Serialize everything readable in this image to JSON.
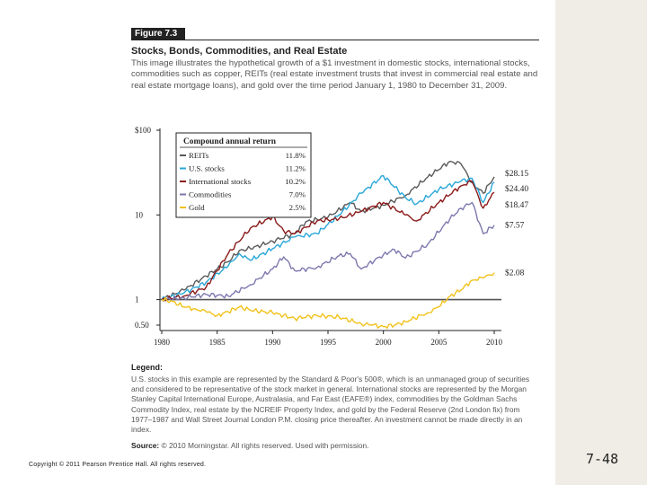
{
  "slide": {
    "figure_label": "Figure 7.3",
    "title": "Stocks, Bonds, Commodities, and Real Estate",
    "description": "This image illustrates the hypothetical growth of a $1 investment in domestic stocks, international stocks, commodities such as copper, REITs (real estate investment trusts that invest in commercial real estate and real estate mortgage loans), and gold over the time period January 1, 1980 to December 31, 2009.",
    "legend_heading": "Legend:",
    "legend_text": "U.S. stocks in this example are represented by the Standard & Poor's 500®, which is an unmanaged group of securities and considered to be representative of the stock market in general. International stocks are represented by the Morgan Stanley Capital International Europe, Australasia, and Far East (EAFE®) index, commodities by the Goldman Sachs Commodity Index, real estate by the NCREIF Property Index, and gold by the Federal Reserve (2nd London fix) from 1977–1987 and Wall Street Journal London P.M. closing price thereafter. An investment cannot be made directly in an index.",
    "source_label": "Source:",
    "source_text": "© 2010 Morningstar. All rights reserved. Used with permission.",
    "copyright": "Copyright © 2011 Pearson Prentice Hall. All rights reserved.",
    "slide_number": "7-48"
  },
  "chart_data": {
    "type": "line",
    "title": "",
    "xlabel": "",
    "ylabel": "",
    "y_scale": "log",
    "xlim": [
      1980,
      2010
    ],
    "ylim": [
      0.5,
      100
    ],
    "x_ticks": [
      "1980",
      "1985",
      "1990",
      "1995",
      "2000",
      "2005",
      "2010"
    ],
    "x_tick_values": [
      1980,
      1985,
      1990,
      1995,
      2000,
      2005,
      2010
    ],
    "y_ticks": [
      "$100",
      "10",
      "1",
      "0.50"
    ],
    "y_tick_values": [
      100,
      10,
      1,
      0.5
    ],
    "baseline": 1,
    "legend_title": "Compound annual return",
    "series": [
      {
        "name": "REITs",
        "rate": "11.8%",
        "end_label": "$28.15",
        "color": "#5a5a5a",
        "points": [
          [
            1980,
            1
          ],
          [
            1982,
            1.3
          ],
          [
            1984,
            1.9
          ],
          [
            1986,
            2.8
          ],
          [
            1987,
            3.8
          ],
          [
            1988,
            4.0
          ],
          [
            1990,
            4.9
          ],
          [
            1992,
            6.0
          ],
          [
            1993,
            8.3
          ],
          [
            1995,
            9.4
          ],
          [
            1997,
            14.0
          ],
          [
            1998,
            11.0
          ],
          [
            2000,
            13.0
          ],
          [
            2002,
            17.0
          ],
          [
            2004,
            28.0
          ],
          [
            2006,
            43.0
          ],
          [
            2007,
            40.0
          ],
          [
            2008,
            24.0
          ],
          [
            2009,
            18.0
          ],
          [
            2010,
            28.15
          ]
        ]
      },
      {
        "name": "U.S. stocks",
        "rate": "11.2%",
        "end_label": "$24.40",
        "color": "#2aa7d8",
        "points": [
          [
            1980,
            1
          ],
          [
            1982,
            1.2
          ],
          [
            1984,
            1.6
          ],
          [
            1986,
            2.5
          ],
          [
            1987,
            3.5
          ],
          [
            1988,
            2.9
          ],
          [
            1990,
            4.0
          ],
          [
            1992,
            5.5
          ],
          [
            1994,
            6.0
          ],
          [
            1996,
            10.0
          ],
          [
            1998,
            18.0
          ],
          [
            2000,
            29.0
          ],
          [
            2002,
            16.0
          ],
          [
            2003,
            13.5
          ],
          [
            2005,
            20.0
          ],
          [
            2007,
            25.0
          ],
          [
            2008,
            27.0
          ],
          [
            2009,
            14.0
          ],
          [
            2010,
            24.4
          ]
        ]
      },
      {
        "name": "International stocks",
        "rate": "10.2%",
        "end_label": "$18.47",
        "color": "#8b1a1a",
        "points": [
          [
            1980,
            1
          ],
          [
            1982,
            1.1
          ],
          [
            1984,
            1.4
          ],
          [
            1986,
            3.5
          ],
          [
            1988,
            7.0
          ],
          [
            1990,
            9.5
          ],
          [
            1991,
            6.5
          ],
          [
            1992,
            6.0
          ],
          [
            1994,
            8.5
          ],
          [
            1996,
            9.0
          ],
          [
            1998,
            11.0
          ],
          [
            2000,
            14.0
          ],
          [
            2002,
            10.0
          ],
          [
            2003,
            8.5
          ],
          [
            2005,
            14.0
          ],
          [
            2007,
            22.0
          ],
          [
            2008,
            25.0
          ],
          [
            2009,
            12.0
          ],
          [
            2010,
            18.47
          ]
        ]
      },
      {
        "name": "Commodities",
        "rate": "7.0%",
        "end_label": "$7.57",
        "color": "#7d78ae",
        "points": [
          [
            1980,
            1
          ],
          [
            1982,
            1.05
          ],
          [
            1984,
            1.15
          ],
          [
            1986,
            1.1
          ],
          [
            1988,
            1.5
          ],
          [
            1990,
            2.3
          ],
          [
            1991,
            3.2
          ],
          [
            1992,
            2.2
          ],
          [
            1994,
            2.4
          ],
          [
            1996,
            3.3
          ],
          [
            1997,
            3.5
          ],
          [
            1998,
            2.3
          ],
          [
            2000,
            3.4
          ],
          [
            2001,
            3.9
          ],
          [
            2002,
            3.1
          ],
          [
            2004,
            4.5
          ],
          [
            2006,
            9.0
          ],
          [
            2007,
            12.0
          ],
          [
            2008,
            14.0
          ],
          [
            2009,
            6.0
          ],
          [
            2010,
            7.57
          ]
        ]
      },
      {
        "name": "Gold",
        "rate": "2.5%",
        "end_label": "$2.08",
        "color": "#f1c21b",
        "points": [
          [
            1980,
            1
          ],
          [
            1981,
            0.95
          ],
          [
            1982,
            0.82
          ],
          [
            1983,
            0.78
          ],
          [
            1984,
            0.72
          ],
          [
            1985,
            0.65
          ],
          [
            1986,
            0.72
          ],
          [
            1987,
            0.82
          ],
          [
            1988,
            0.75
          ],
          [
            1990,
            0.7
          ],
          [
            1992,
            0.6
          ],
          [
            1994,
            0.65
          ],
          [
            1996,
            0.62
          ],
          [
            1998,
            0.52
          ],
          [
            1999,
            0.5
          ],
          [
            2000,
            0.48
          ],
          [
            2001,
            0.5
          ],
          [
            2002,
            0.55
          ],
          [
            2004,
            0.7
          ],
          [
            2005,
            0.82
          ],
          [
            2006,
            1.1
          ],
          [
            2007,
            1.3
          ],
          [
            2008,
            1.7
          ],
          [
            2009,
            1.8
          ],
          [
            2010,
            2.08
          ]
        ]
      }
    ]
  }
}
